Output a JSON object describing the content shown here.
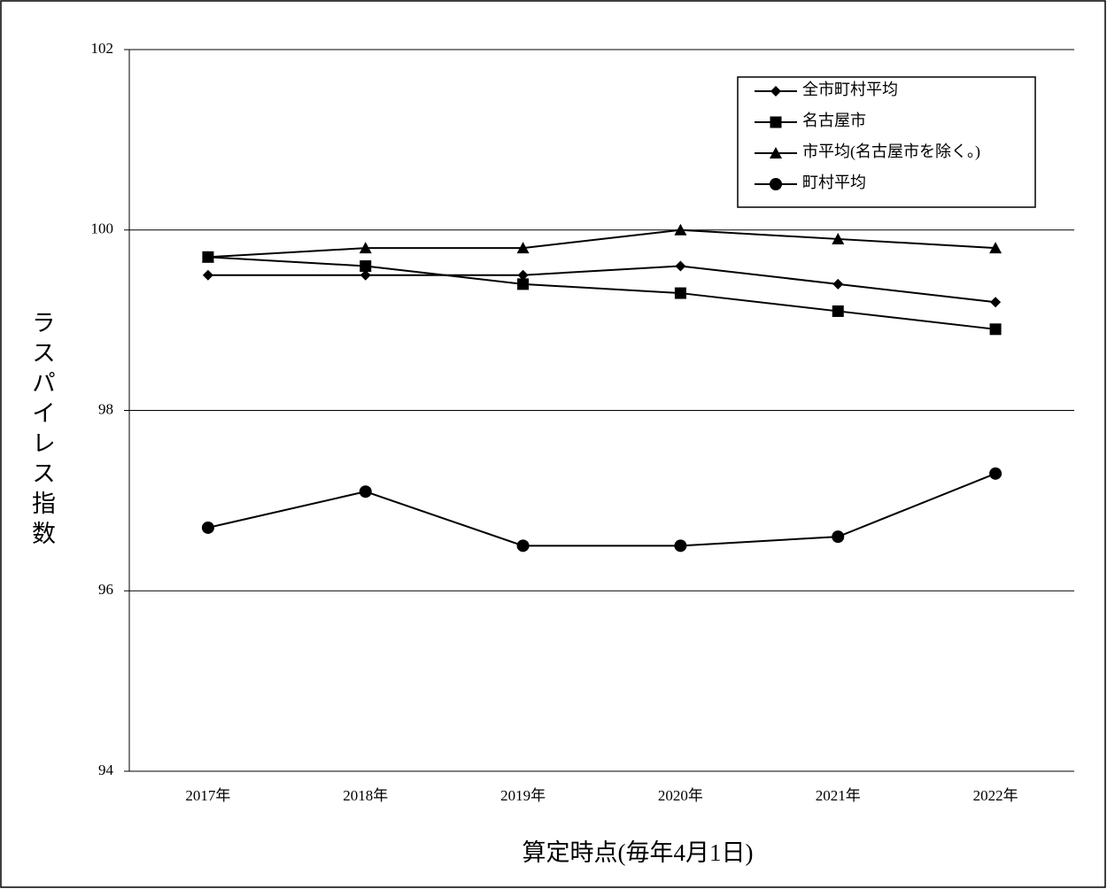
{
  "chart_data": {
    "type": "line",
    "y_label": "ラスパイレス指数",
    "x_label": "算定時点(毎年4月1日)",
    "categories": [
      "2017年",
      "2018年",
      "2019年",
      "2020年",
      "2021年",
      "2022年"
    ],
    "series": [
      {
        "name": "全市町村平均",
        "color": "#000000",
        "marker": "diamond",
        "values": [
          99.5,
          99.5,
          99.5,
          99.6,
          99.4,
          99.2
        ]
      },
      {
        "name": "名古屋市",
        "color": "#000000",
        "marker": "square",
        "values": [
          99.7,
          99.6,
          99.4,
          99.3,
          99.1,
          98.9
        ]
      },
      {
        "name": "市平均(名古屋市を除く。)",
        "color": "#000000",
        "marker": "triangle",
        "values": [
          99.7,
          99.8,
          99.8,
          100.0,
          99.9,
          99.8
        ]
      },
      {
        "name": "町村平均",
        "color": "#000000",
        "marker": "circle",
        "values": [
          96.7,
          97.1,
          96.5,
          96.5,
          96.6,
          97.3
        ]
      }
    ],
    "ylim": [
      94,
      102
    ],
    "yticks": [
      94,
      96,
      98,
      100,
      102
    ],
    "grid": true,
    "legend": "top-right"
  }
}
